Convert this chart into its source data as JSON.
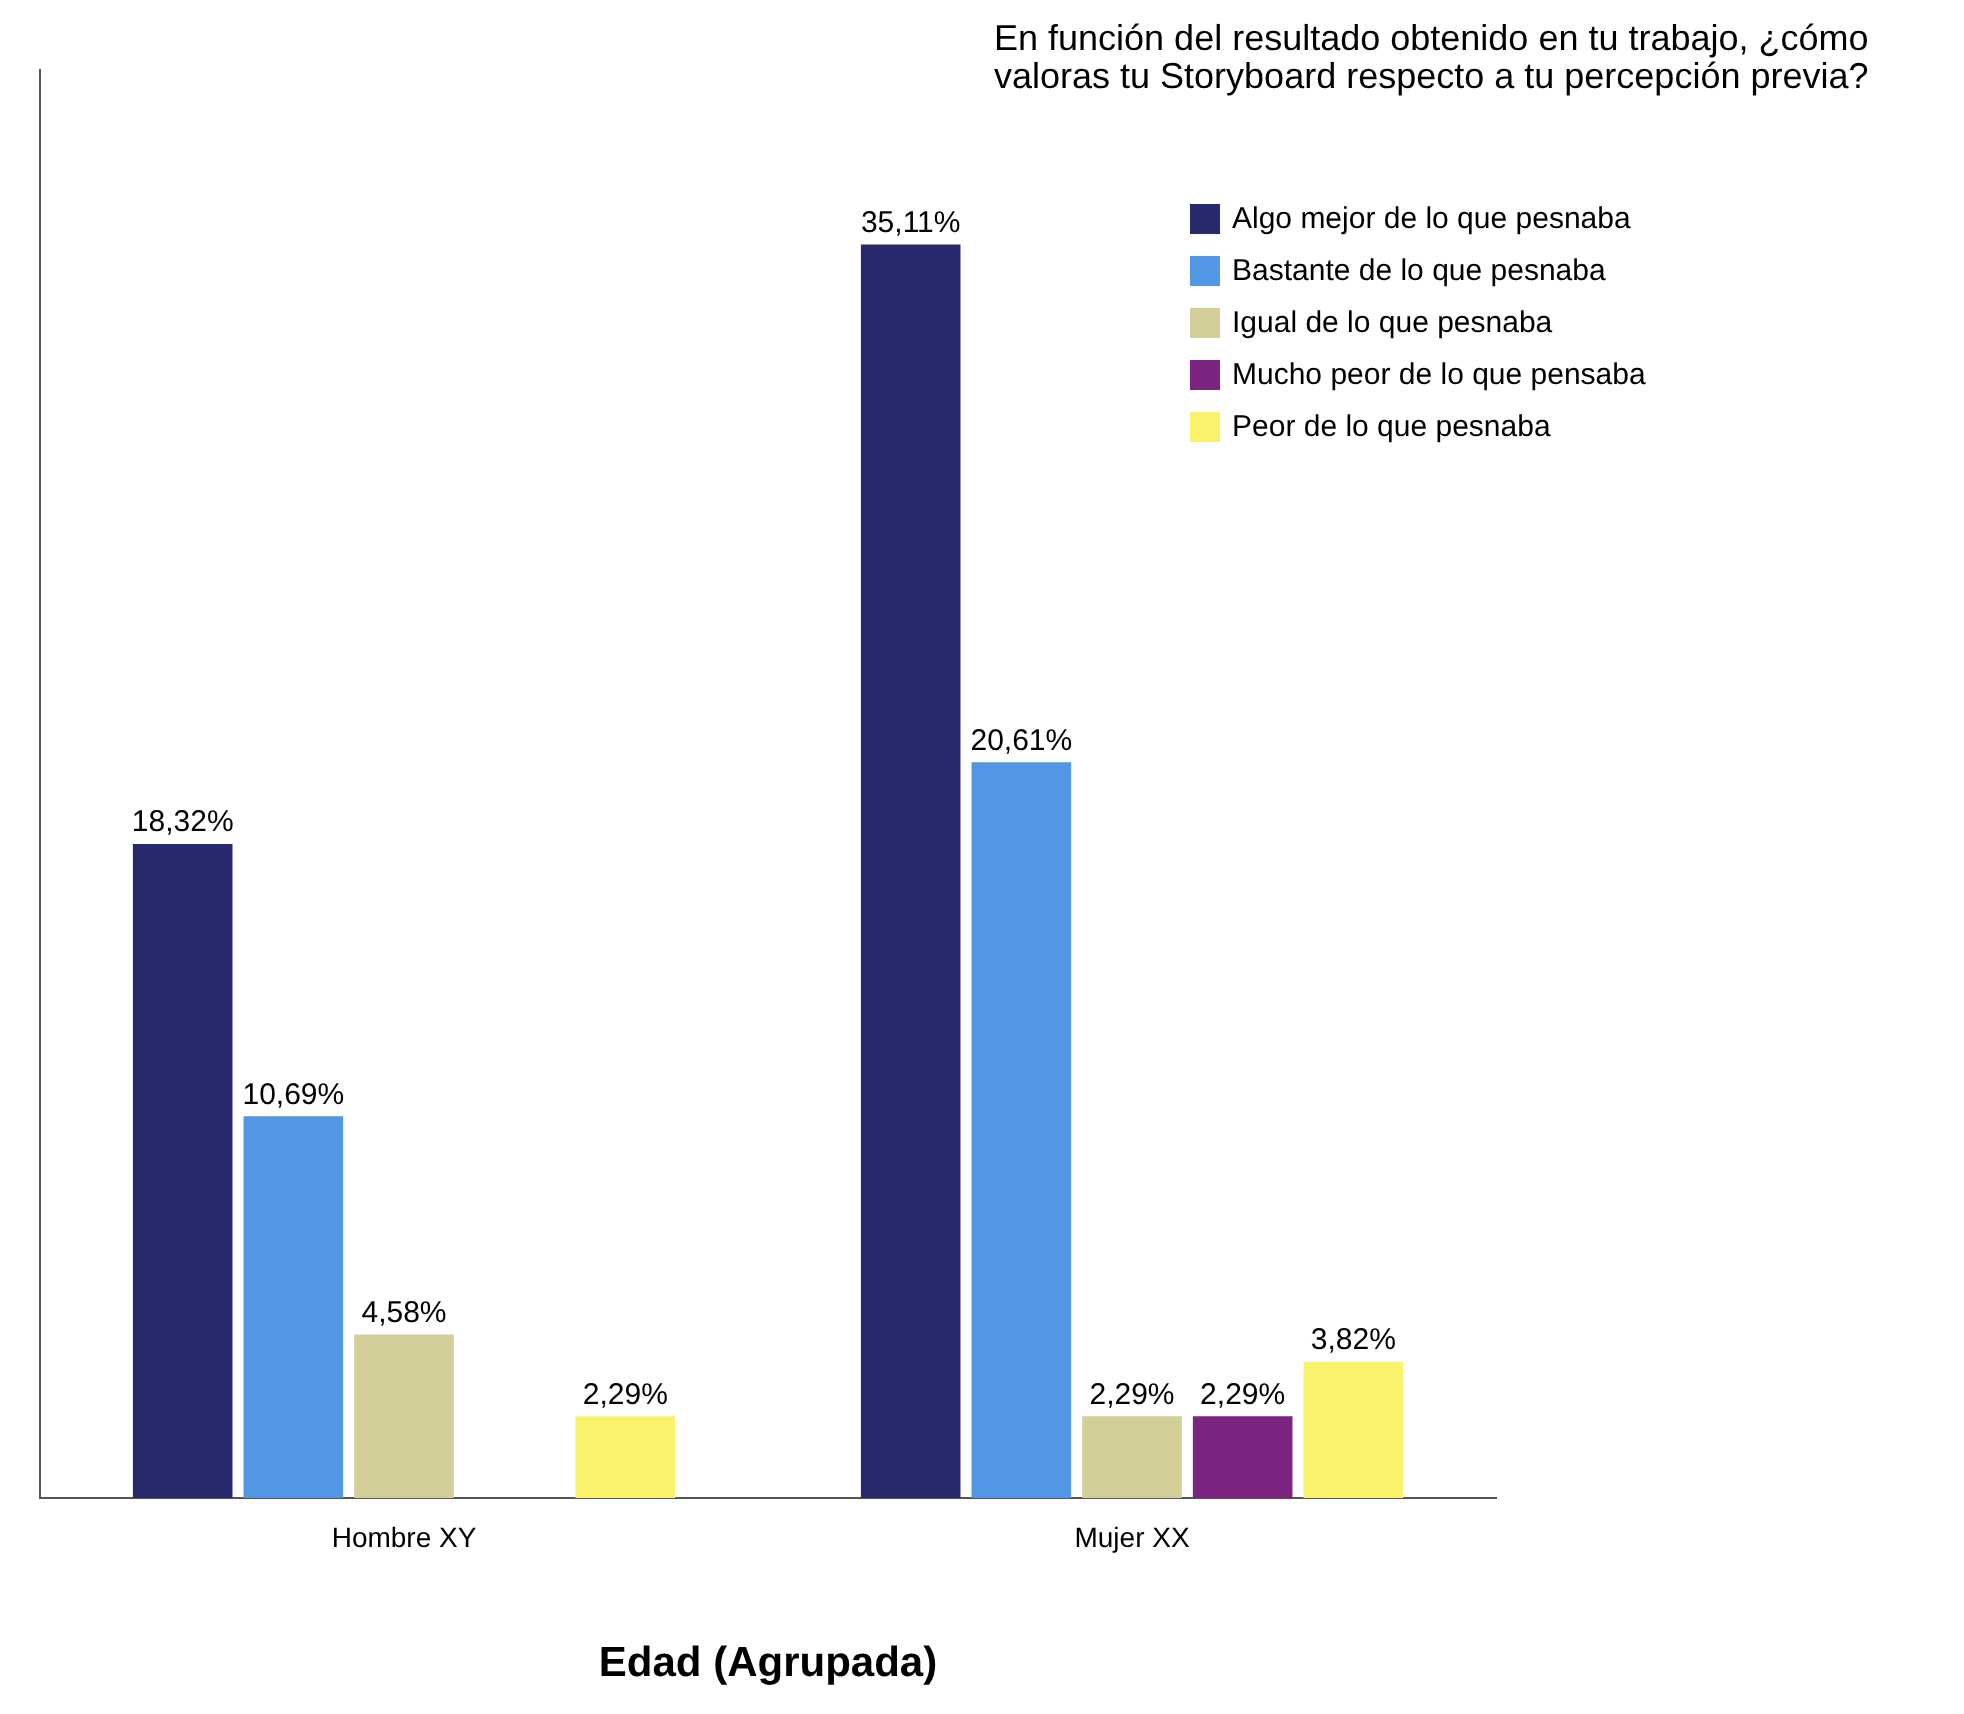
{
  "chart_data": {
    "type": "bar",
    "title": "En función del resultado obtenido en tu trabajo, ¿cómo valoras tu Storyboard respecto a tu percepción previa?",
    "xlabel": "Edad (Agrupada)",
    "categories": [
      "Hombre XY",
      "Mujer XX"
    ],
    "series": [
      {
        "name": "Algo mejor de lo que pesnaba",
        "color": "#27296d",
        "values": [
          18.32,
          35.11
        ],
        "value_labels": [
          "18,32%",
          "35,11%"
        ]
      },
      {
        "name": "Bastante de lo que pesnaba",
        "color": "#5197e3",
        "values": [
          10.69,
          20.61
        ],
        "value_labels": [
          "10,69%",
          "20,61%"
        ]
      },
      {
        "name": "Igual de lo que pesnaba",
        "color": "#d3ce97",
        "values": [
          4.58,
          2.29
        ],
        "value_labels": [
          "4,58%",
          "2,29%"
        ]
      },
      {
        "name": "Mucho peor de lo que pensaba",
        "color": "#7b2580",
        "values": [
          null,
          2.29
        ],
        "value_labels": [
          null,
          "2,29%"
        ]
      },
      {
        "name": "Peor de lo que pesnaba",
        "color": "#f8f36a",
        "values": [
          2.29,
          3.82
        ],
        "value_labels": [
          "2,29%",
          "3,82%"
        ]
      }
    ],
    "legend": "top right",
    "grid": false
  }
}
